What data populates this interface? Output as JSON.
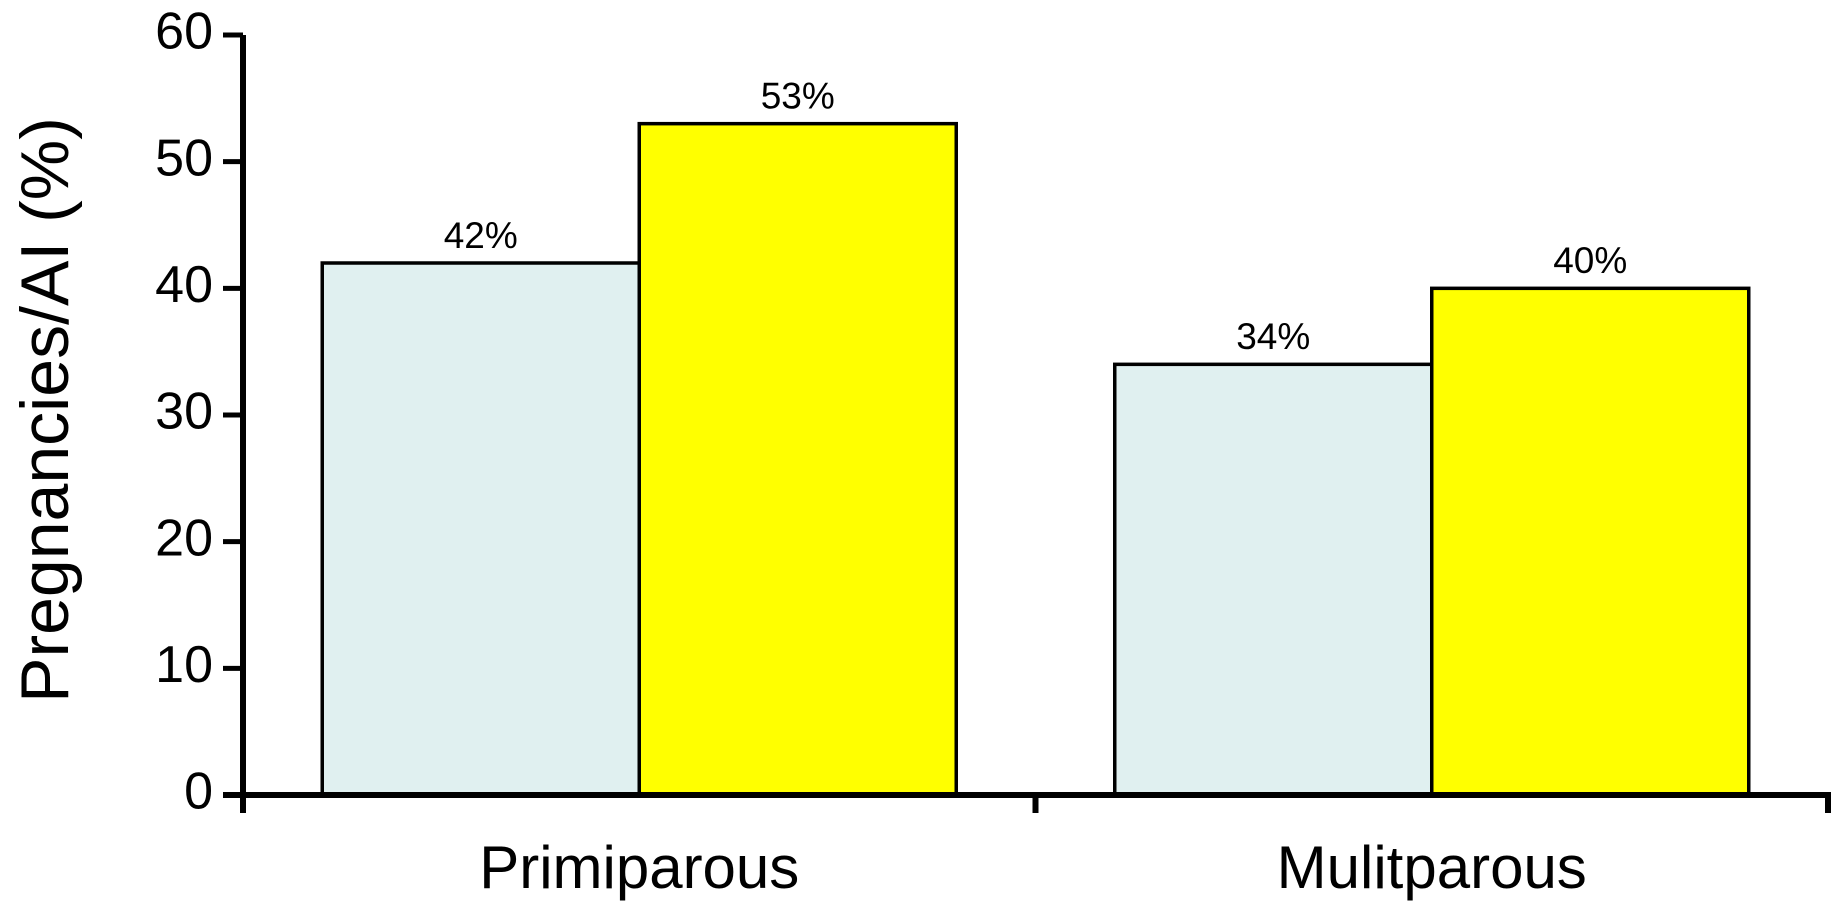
{
  "chart_data": {
    "type": "bar",
    "y_label": "Pregnancies/AI (%)",
    "categories": [
      "Primiparous",
      "Mulitparous"
    ],
    "series": [
      {
        "color": "#e0f0f0",
        "values": [
          42,
          34
        ],
        "value_labels": [
          "42%",
          "34%"
        ]
      },
      {
        "color": "#ffff00",
        "values": [
          53,
          40
        ],
        "value_labels": [
          "53%",
          "40%"
        ]
      }
    ],
    "ylim": [
      0,
      60
    ],
    "yticks": [
      0,
      10,
      20,
      30,
      40,
      50,
      60
    ],
    "grid": false
  }
}
